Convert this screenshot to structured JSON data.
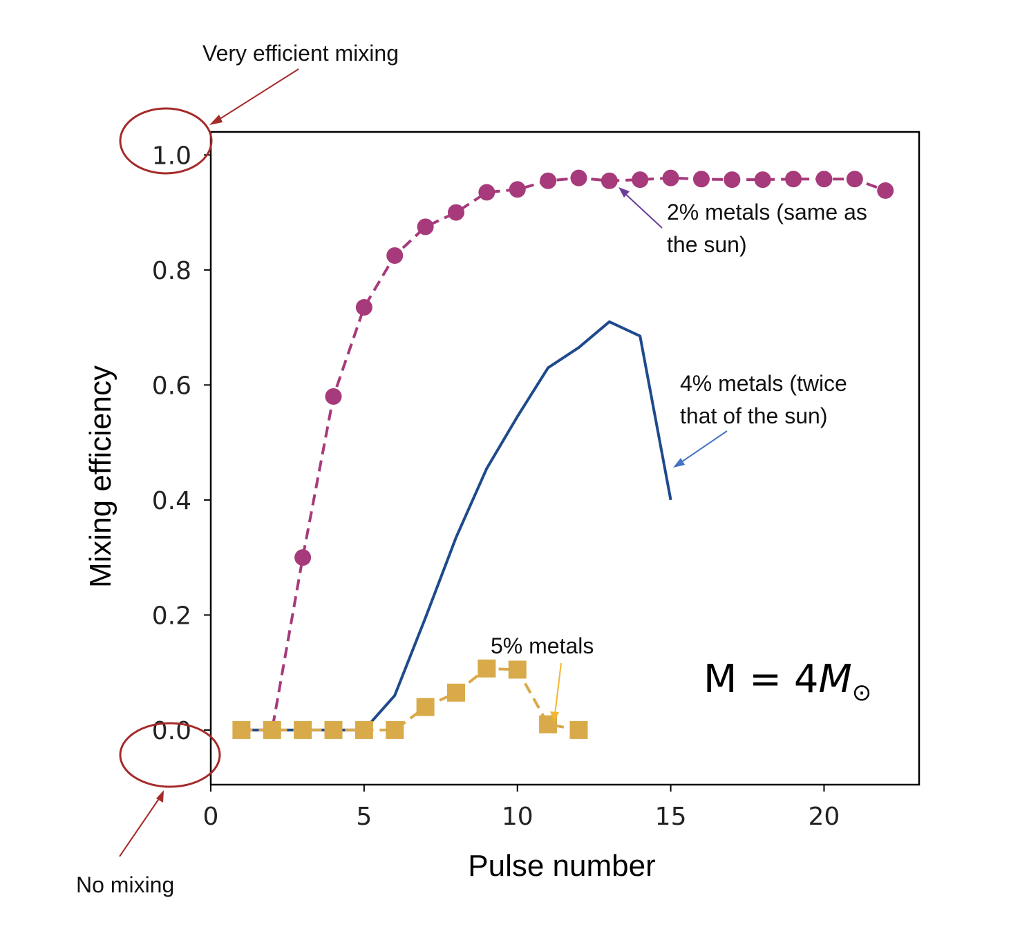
{
  "chart_data": {
    "type": "line",
    "xlabel": "Pulse number",
    "ylabel": "Mixing efficiency",
    "xlim": [
      0,
      23.1
    ],
    "ylim": [
      -0.095,
      1.04
    ],
    "xticks": [
      0,
      5,
      10,
      15,
      20
    ],
    "yticks": [
      0.0,
      0.2,
      0.4,
      0.6,
      0.8,
      1.0
    ],
    "xtick_labels": [
      "0",
      "5",
      "10",
      "15",
      "20"
    ],
    "ytick_labels": [
      "0.0",
      "0.2",
      "0.4",
      "0.6",
      "0.8",
      "1.0"
    ],
    "grid": false,
    "series": [
      {
        "label": "2% metals (same as the sun)",
        "color": "#a73a7a",
        "line_style": "dashed",
        "marker": "circle",
        "x": [
          1,
          2,
          3,
          4,
          5,
          6,
          7,
          8,
          9,
          10,
          11,
          12,
          13,
          14,
          15,
          16,
          17,
          18,
          19,
          20,
          21,
          22
        ],
        "y": [
          0.0,
          0.0,
          0.3,
          0.58,
          0.735,
          0.825,
          0.875,
          0.9,
          0.935,
          0.94,
          0.955,
          0.96,
          0.955,
          0.957,
          0.96,
          0.958,
          0.957,
          0.957,
          0.958,
          0.958,
          0.958,
          0.938
        ]
      },
      {
        "label": "4% metals (twice that of the sun)",
        "color": "#1f4a8c",
        "line_style": "solid",
        "marker": "none",
        "x": [
          1,
          2,
          3,
          4,
          5,
          6,
          7,
          8,
          9,
          10,
          11,
          12,
          13,
          14,
          15
        ],
        "y": [
          0.0,
          0.0,
          0.0,
          0.0,
          0.0,
          0.06,
          0.195,
          0.335,
          0.455,
          0.545,
          0.63,
          0.665,
          0.71,
          0.685,
          0.4
        ]
      },
      {
        "label": "5% metals",
        "color": "#d9aa4a",
        "line_style": "dashed",
        "marker": "square",
        "x": [
          1,
          2,
          3,
          4,
          5,
          6,
          7,
          8,
          9,
          10,
          11,
          12
        ],
        "y": [
          0.0,
          0.0,
          0.0,
          0.0,
          0.0,
          0.0,
          0.04,
          0.065,
          0.107,
          0.105,
          0.01,
          0.0
        ]
      }
    ],
    "annotations": {
      "top": "Very efficient mixing",
      "bottom": "No mixing",
      "s2_line1": "2% metals (same as",
      "s2_line2": "the sun)",
      "s4_line1": "4% metals (twice",
      "s4_line2": "that of the sun)",
      "s5": "5% metals",
      "mass_lhs": "M = 4",
      "mass_rhs": "M",
      "mass_sub": "⊙"
    },
    "annotation_color": "#a52a2a"
  }
}
